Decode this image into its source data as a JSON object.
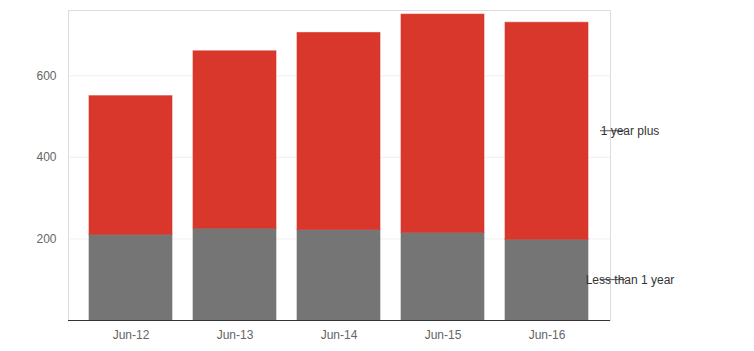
{
  "chart_data": {
    "type": "bar",
    "stacked": true,
    "categories": [
      "Jun-12",
      "Jun-13",
      "Jun-14",
      "Jun-15",
      "Jun-16"
    ],
    "series": [
      {
        "name": "Less than 1 year",
        "color": "#757575",
        "values": [
          210,
          225,
          222,
          215,
          198
        ]
      },
      {
        "name": "1 year plus",
        "color": "#d9372b",
        "values": [
          340,
          435,
          483,
          535,
          532
        ]
      }
    ],
    "ylim": [
      0,
      760
    ],
    "yticks": [
      200,
      400,
      600
    ],
    "grid": true
  }
}
